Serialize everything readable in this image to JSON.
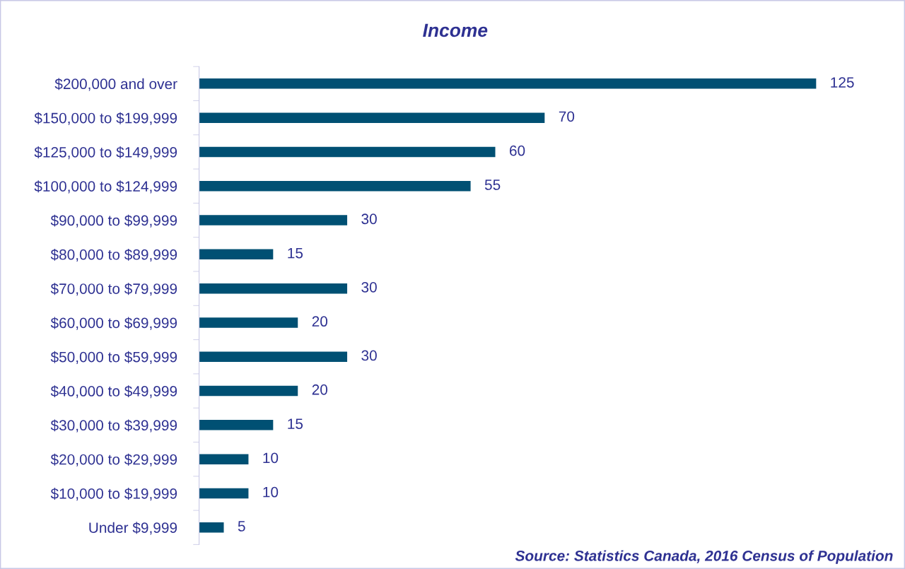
{
  "chart_data": {
    "type": "bar",
    "orientation": "horizontal",
    "title": "Income",
    "categories": [
      "$200,000 and over",
      "$150,000 to $199,999",
      "$125,000 to $149,999",
      "$100,000 to $124,999",
      "$90,000 to $99,999",
      "$80,000 to $89,999",
      "$70,000 to $79,999",
      "$60,000 to $69,999",
      "$50,000 to $59,999",
      "$40,000 to $49,999",
      "$30,000 to $39,999",
      "$20,000 to $29,999",
      "$10,000 to $19,999",
      "Under $9,999"
    ],
    "values": [
      125,
      70,
      60,
      55,
      30,
      15,
      30,
      20,
      30,
      20,
      15,
      10,
      10,
      5
    ],
    "color": "#005073",
    "data_labels": true,
    "grid": false,
    "legend": false,
    "tick_labels": "y",
    "annotations": [
      "Source: Statistics Canada, 2016 Census of Population"
    ]
  }
}
